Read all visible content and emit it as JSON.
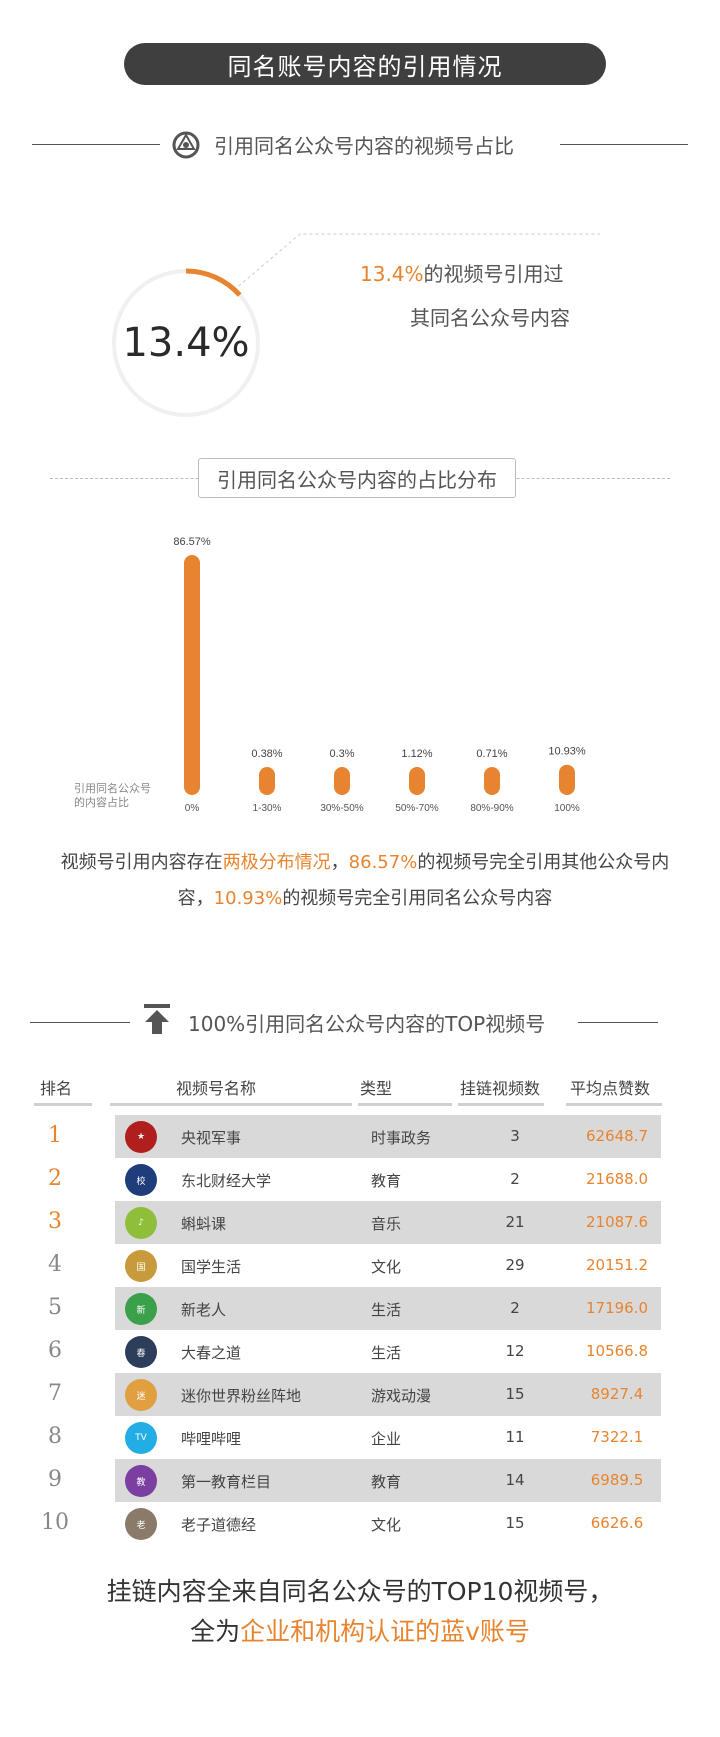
{
  "header": {
    "title": "同名账号内容的引用情况"
  },
  "section1": {
    "heading": "引用同名公众号内容的视频号占比",
    "gauge_value": "13.4%",
    "gauge_fraction": 0.134,
    "callout_highlight": "13.4%",
    "callout_rest": "的视频号引用过",
    "callout_line2": "其同名公众号内容"
  },
  "section2": {
    "heading": "引用同名公众号内容的占比分布",
    "ylabel_line1": "引用同名公众号",
    "ylabel_line2": "的内容占比"
  },
  "chart_data": {
    "type": "bar",
    "categories": [
      "0%",
      "1-30%",
      "30%-50%",
      "50%-70%",
      "80%-90%",
      "100%"
    ],
    "values": [
      86.57,
      0.38,
      0.3,
      1.12,
      0.71,
      10.93
    ],
    "value_labels": [
      "86.57%",
      "0.38%",
      "0.3%",
      "1.12%",
      "0.71%",
      "10.93%"
    ],
    "color": "#e8842f"
  },
  "summary": {
    "p1": "视频号引用内容存在",
    "h1": "两极分布情况",
    "p2": "，",
    "h2": "86.57%",
    "p3": "的视频号完全引用其他公众号内容，",
    "h3": "10.93%",
    "p4": "的视频号完全引用同名公众号内容"
  },
  "section3": {
    "heading": "100%引用同名公众号内容的TOP视频号"
  },
  "table": {
    "headers": {
      "rank": "排名",
      "name": "视频号名称",
      "type": "类型",
      "links": "挂链视频数",
      "likes": "平均点赞数"
    },
    "rows": [
      {
        "rank": "1",
        "name": "央视军事",
        "type": "时事政务",
        "links": "3",
        "likes": "62648.7",
        "avatar_color": "#b01e1e",
        "avatar_text": "★"
      },
      {
        "rank": "2",
        "name": "东北财经大学",
        "type": "教育",
        "links": "2",
        "likes": "21688.0",
        "avatar_color": "#1e3d7a",
        "avatar_text": "校"
      },
      {
        "rank": "3",
        "name": "蝌蚪课",
        "type": "音乐",
        "links": "21",
        "likes": "21087.6",
        "avatar_color": "#8fbf3a",
        "avatar_text": "♪"
      },
      {
        "rank": "4",
        "name": "国学生活",
        "type": "文化",
        "links": "29",
        "likes": "20151.2",
        "avatar_color": "#c79a3c",
        "avatar_text": "国"
      },
      {
        "rank": "5",
        "name": "新老人",
        "type": "生活",
        "links": "2",
        "likes": "17196.0",
        "avatar_color": "#3aa04a",
        "avatar_text": "新"
      },
      {
        "rank": "6",
        "name": "大春之道",
        "type": "生活",
        "links": "12",
        "likes": "10566.8",
        "avatar_color": "#2c3e5a",
        "avatar_text": "春"
      },
      {
        "rank": "7",
        "name": "迷你世界粉丝阵地",
        "type": "游戏动漫",
        "links": "15",
        "likes": "8927.4",
        "avatar_color": "#e0a040",
        "avatar_text": "迷"
      },
      {
        "rank": "8",
        "name": "哔哩哔哩",
        "type": "企业",
        "links": "11",
        "likes": "7322.1",
        "avatar_color": "#23ade5",
        "avatar_text": "TV"
      },
      {
        "rank": "9",
        "name": "第一教育栏目",
        "type": "教育",
        "links": "14",
        "likes": "6989.5",
        "avatar_color": "#7a3fa0",
        "avatar_text": "教"
      },
      {
        "rank": "10",
        "name": "老子道德经",
        "type": "文化",
        "links": "15",
        "likes": "6626.6",
        "avatar_color": "#8a7a6a",
        "avatar_text": "老"
      }
    ]
  },
  "footer": {
    "line1": "挂链内容全来自同名公众号的TOP10视频号，",
    "line2_prefix": "全为",
    "line2_highlight": "企业和机构认证的蓝v账号"
  },
  "colors": {
    "accent": "#e8842f",
    "dark": "#3f3f3f",
    "rank_top": "#e8842f",
    "rank_rest": "#888888"
  }
}
